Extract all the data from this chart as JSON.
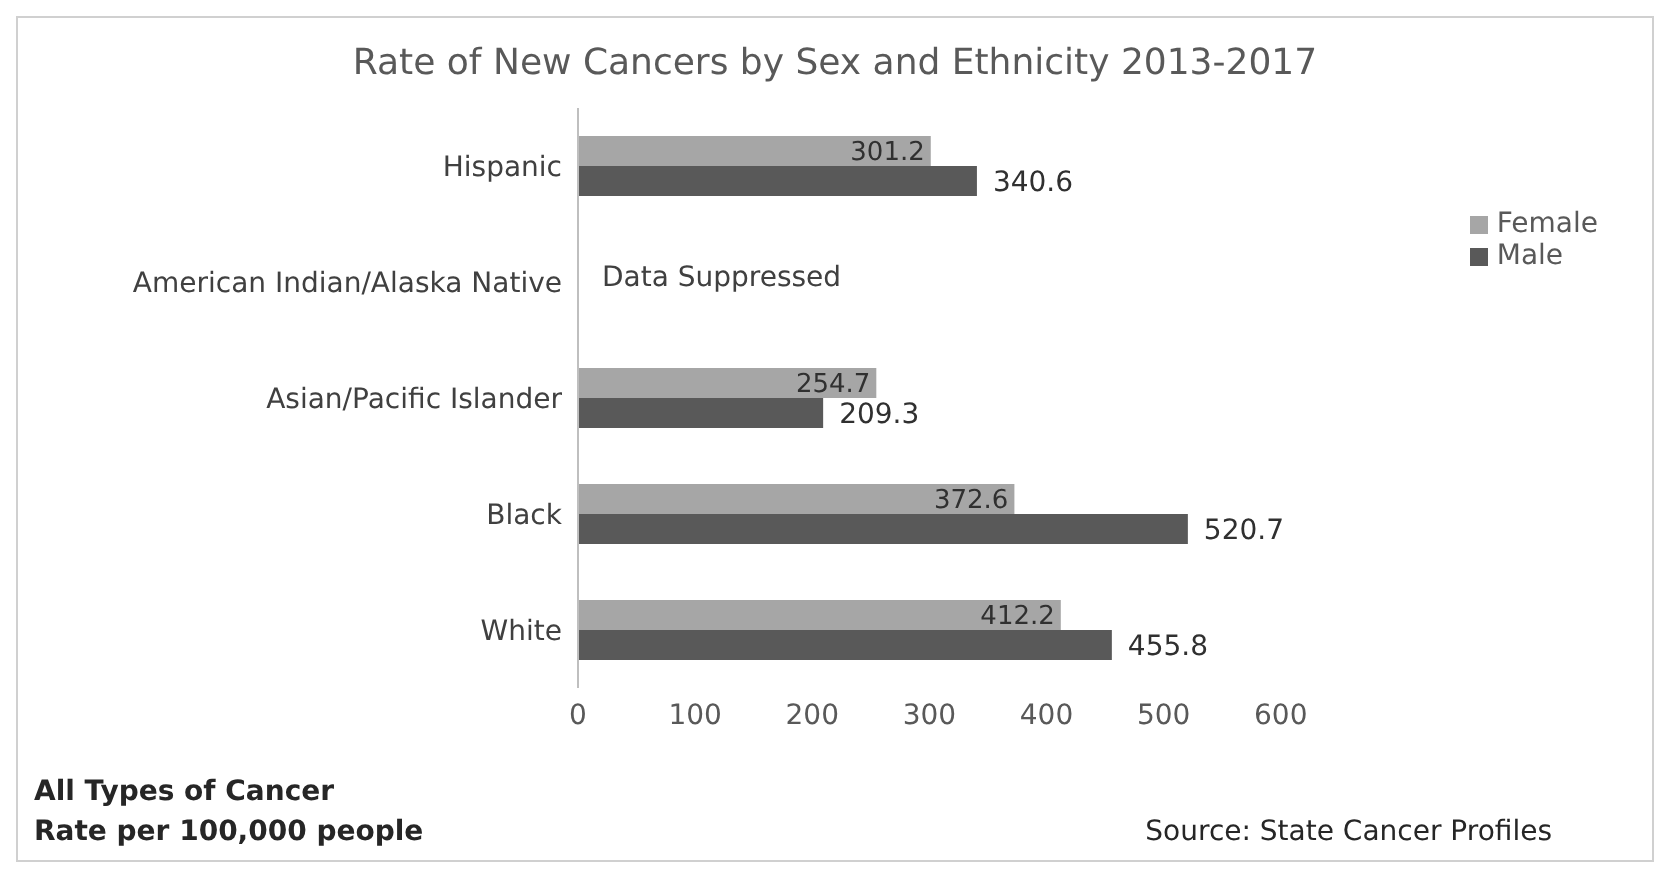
{
  "chart_data": {
    "type": "bar",
    "orientation": "horizontal",
    "title": "Rate of New Cancers by Sex and Ethnicity 2013-2017",
    "categories": [
      "Hispanic",
      "American Indian/Alaska Native",
      "Asian/Pacific Islander",
      "Black",
      "White"
    ],
    "series": [
      {
        "name": "Female",
        "color": "#a6a6a6",
        "values": [
          301.2,
          null,
          254.7,
          372.6,
          412.2
        ]
      },
      {
        "name": "Male",
        "color": "#595959",
        "values": [
          340.6,
          null,
          209.3,
          520.7,
          455.8
        ]
      }
    ],
    "xlim": [
      0,
      600
    ],
    "xticks": [
      0,
      100,
      200,
      300,
      400,
      500,
      600
    ],
    "grid": false,
    "legend": "right",
    "data_labels": true,
    "annotations": [
      "Data Suppressed",
      "All Types of Cancer\nRate per 100,000 people",
      "Source: State Cancer Profiles"
    ]
  }
}
